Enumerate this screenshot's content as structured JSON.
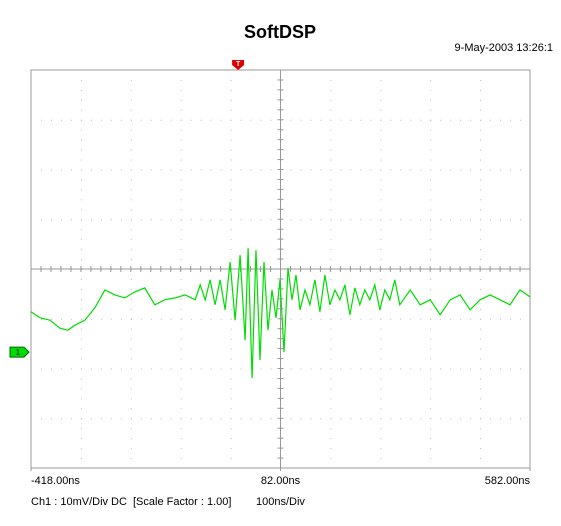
{
  "chart_data": {
    "type": "line",
    "title": "SoftDSP",
    "timestamp": "9-May-2003 13:26:1",
    "footer": [
      "Ch1 : 10mV/Div",
      "DC",
      "[Scale Factor : 1.00]",
      "100ns/Div"
    ],
    "x": [
      -418,
      -400,
      -380,
      -360,
      -344,
      -330,
      -310,
      -290,
      -270,
      -250,
      -230,
      -210,
      -190,
      -170,
      -150,
      -129,
      -109,
      -89,
      -79,
      -69,
      -59,
      -49,
      -39,
      -29,
      -19,
      -9,
      1,
      11,
      17,
      25,
      33,
      41,
      49,
      57,
      65,
      73,
      81,
      89,
      97,
      105,
      113,
      121,
      131,
      141,
      151,
      161,
      171,
      181,
      191,
      201,
      211,
      221,
      231,
      241,
      251,
      261,
      271,
      281,
      291,
      301,
      311,
      321,
      342,
      362,
      382,
      402,
      422,
      442,
      462,
      482,
      502,
      522,
      542,
      562,
      582
    ],
    "series": [
      {
        "color": "#00dd00",
        "values": [
          -0.86,
          -0.98,
          -1.03,
          -1.19,
          -1.23,
          -1.13,
          -1.03,
          -0.78,
          -0.42,
          -0.52,
          -0.58,
          -0.46,
          -0.38,
          -0.72,
          -0.62,
          -0.58,
          -0.52,
          -0.62,
          -0.32,
          -0.62,
          -0.22,
          -0.72,
          -0.22,
          -0.82,
          0.14,
          -1.03,
          0.28,
          -1.43,
          0.42,
          -2.19,
          0.38,
          -1.83,
          0.14,
          -1.23,
          -0.42,
          -0.98,
          -0.22,
          -1.67,
          0.02,
          -0.62,
          -0.12,
          -0.82,
          -0.42,
          -0.72,
          -0.22,
          -0.86,
          -0.12,
          -0.72,
          -0.42,
          -0.62,
          -0.32,
          -0.92,
          -0.38,
          -0.72,
          -0.42,
          -0.62,
          -0.32,
          -0.82,
          -0.42,
          -0.62,
          -0.22,
          -0.72,
          -0.42,
          -0.72,
          -0.62,
          -0.92,
          -0.62,
          -0.52,
          -0.82,
          -0.62,
          -0.52,
          -0.62,
          -0.72,
          -0.42,
          -0.56
        ]
      }
    ],
    "xlim": [
      -418,
      582
    ],
    "xticks": [
      {
        "value": -418,
        "label": "-418.00ns"
      },
      {
        "value": 82,
        "label": "82.00ns"
      },
      {
        "value": 582,
        "label": "582.00ns"
      }
    ],
    "ylim": [
      -4,
      4
    ],
    "x_divisions": 10,
    "y_divisions": 8,
    "channel_marker": {
      "label": "1",
      "level": -1.67,
      "color": "#00dd00"
    },
    "trigger_marker": {
      "label": "T",
      "x": -3,
      "color": "#dd0000"
    }
  }
}
